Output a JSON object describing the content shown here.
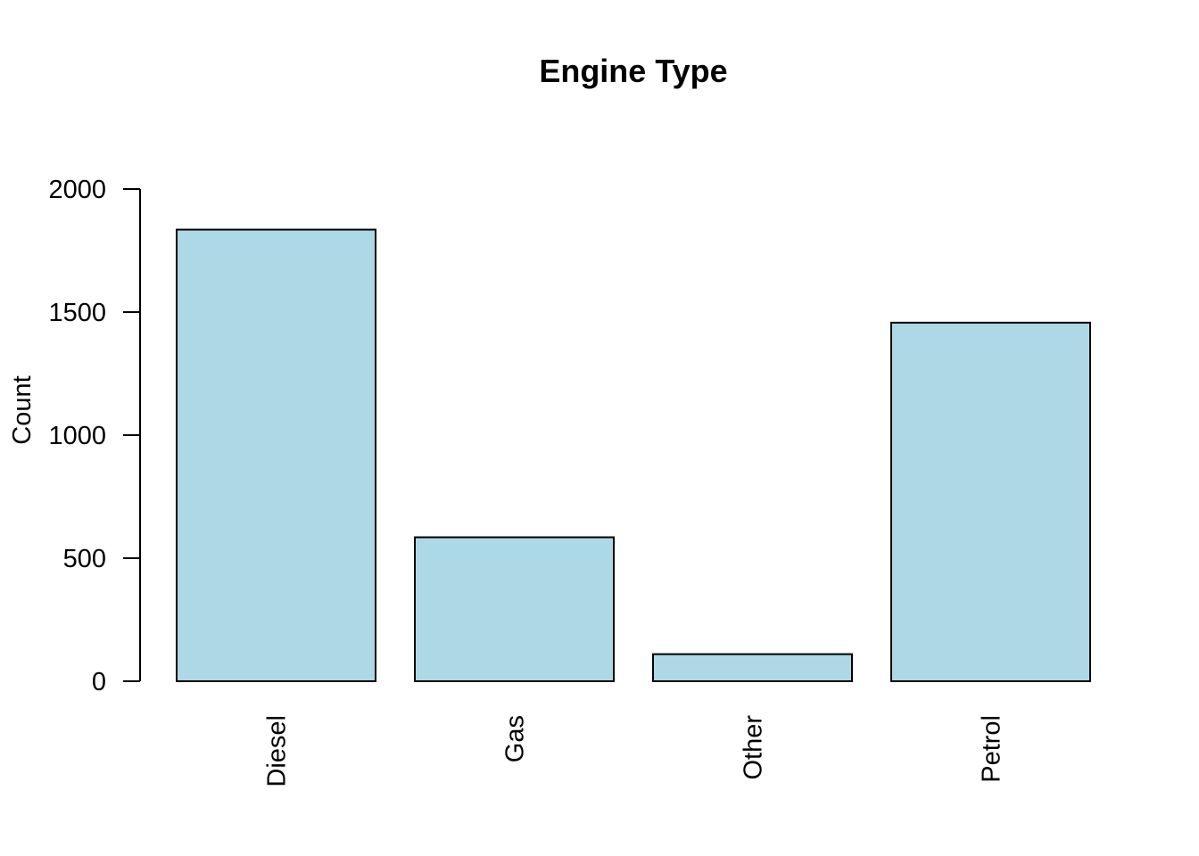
{
  "chart_data": {
    "type": "bar",
    "title": "Engine Type",
    "xlabel": "",
    "ylabel": "Count",
    "categories": [
      "Diesel",
      "Gas",
      "Other",
      "Petrol"
    ],
    "values": [
      1835,
      585,
      110,
      1457
    ],
    "ylim": [
      0,
      2000
    ],
    "yticks": [
      "0",
      "500",
      "1000",
      "1500",
      "2000"
    ],
    "bar_color": "#ADD8E6",
    "grid": false,
    "legend": "none"
  }
}
